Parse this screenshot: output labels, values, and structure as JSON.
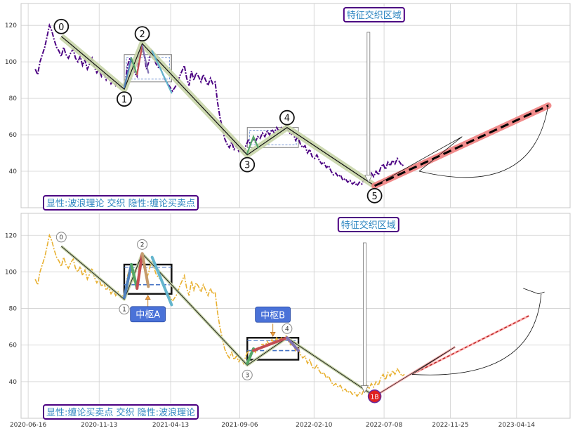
{
  "chart_data": [
    {
      "type": "line",
      "panel": "top",
      "title": "",
      "xlabel": "",
      "ylabel": "",
      "ylim": [
        20,
        132
      ],
      "yticks": [
        40,
        60,
        80,
        100,
        120
      ],
      "grid": true,
      "annotation_box": "特征交织区域",
      "corner_label": "显性:波浪理论 交织 隐性:缠论买卖点",
      "colors": {
        "price": "#4b0082",
        "wave": "#c8d5a8",
        "forecast": "#f08080",
        "label_border": "#4b0082",
        "label_text": "#2e86c1"
      },
      "wave_points": [
        {
          "label": "0",
          "x": "2020-08-25",
          "y": 114
        },
        {
          "label": "1",
          "x": "2021-01-05",
          "y": 85
        },
        {
          "label": "2",
          "x": "2021-02-12",
          "y": 110
        },
        {
          "label": "3",
          "x": "2021-09-22",
          "y": 49
        },
        {
          "label": "4",
          "x": "2021-12-15",
          "y": 64
        },
        {
          "label": "5",
          "x": "2022-06-18",
          "y": 32
        }
      ],
      "forecast_line": [
        {
          "x": "2022-06-18",
          "y": 32
        },
        {
          "x": "2023-06-20",
          "y": 76
        }
      ],
      "zones": [
        {
          "x0": "2021-01-05",
          "x1": "2021-04-15",
          "y0": 89,
          "y1": 104
        },
        {
          "x0": "2021-09-22",
          "x1": "2022-01-08",
          "y0": 53,
          "y1": 64
        }
      ],
      "price": [
        [
          "2020-07-01",
          96
        ],
        [
          "2020-07-06",
          93
        ],
        [
          "2020-07-11",
          100
        ],
        [
          "2020-07-16",
          104
        ],
        [
          "2020-07-21",
          108
        ],
        [
          "2020-07-26",
          114
        ],
        [
          "2020-07-31",
          120
        ],
        [
          "2020-08-05",
          117
        ],
        [
          "2020-08-10",
          112
        ],
        [
          "2020-08-15",
          108
        ],
        [
          "2020-08-20",
          106
        ],
        [
          "2020-08-25",
          103
        ],
        [
          "2020-08-30",
          108
        ],
        [
          "2020-09-04",
          104
        ],
        [
          "2020-09-09",
          102
        ],
        [
          "2020-09-14",
          105
        ],
        [
          "2020-09-19",
          107
        ],
        [
          "2020-09-24",
          102
        ],
        [
          "2020-09-29",
          100
        ],
        [
          "2020-10-04",
          103
        ],
        [
          "2020-10-09",
          98
        ],
        [
          "2020-10-14",
          101
        ],
        [
          "2020-10-19",
          96
        ],
        [
          "2020-10-24",
          99
        ],
        [
          "2020-10-29",
          102
        ],
        [
          "2020-11-03",
          97
        ],
        [
          "2020-11-08",
          94
        ],
        [
          "2020-11-13",
          96
        ],
        [
          "2020-11-18",
          92
        ],
        [
          "2020-11-23",
          94
        ],
        [
          "2020-11-28",
          90
        ],
        [
          "2020-12-03",
          92
        ],
        [
          "2020-12-08",
          88
        ],
        [
          "2020-12-13",
          90
        ],
        [
          "2020-12-18",
          87
        ],
        [
          "2020-12-23",
          89
        ],
        [
          "2020-12-28",
          86
        ],
        [
          "2021-01-02",
          87
        ],
        [
          "2021-01-07",
          89
        ],
        [
          "2021-01-12",
          98
        ],
        [
          "2021-01-17",
          102
        ],
        [
          "2021-01-22",
          99
        ],
        [
          "2021-01-27",
          94
        ],
        [
          "2021-02-01",
          92
        ],
        [
          "2021-02-06",
          104
        ],
        [
          "2021-02-11",
          108
        ],
        [
          "2021-02-16",
          104
        ],
        [
          "2021-02-21",
          96
        ],
        [
          "2021-02-26",
          100
        ],
        [
          "2021-03-03",
          106
        ],
        [
          "2021-03-08",
          103
        ],
        [
          "2021-03-13",
          99
        ],
        [
          "2021-03-18",
          97
        ],
        [
          "2021-03-23",
          96
        ],
        [
          "2021-03-28",
          93
        ],
        [
          "2021-04-02",
          90
        ],
        [
          "2021-04-07",
          88
        ],
        [
          "2021-04-12",
          86
        ],
        [
          "2021-04-17",
          84
        ],
        [
          "2021-04-22",
          86
        ],
        [
          "2021-04-27",
          88
        ],
        [
          "2021-05-02",
          92
        ],
        [
          "2021-05-07",
          95
        ],
        [
          "2021-05-12",
          98
        ],
        [
          "2021-05-17",
          91
        ],
        [
          "2021-05-22",
          87
        ],
        [
          "2021-05-27",
          95
        ],
        [
          "2021-06-01",
          90
        ],
        [
          "2021-06-06",
          94
        ],
        [
          "2021-06-11",
          92
        ],
        [
          "2021-06-16",
          89
        ],
        [
          "2021-06-21",
          93
        ],
        [
          "2021-06-26",
          90
        ],
        [
          "2021-07-01",
          87
        ],
        [
          "2021-07-06",
          91
        ],
        [
          "2021-07-11",
          88
        ],
        [
          "2021-07-16",
          89
        ],
        [
          "2021-07-21",
          78
        ],
        [
          "2021-07-26",
          70
        ],
        [
          "2021-07-31",
          64
        ],
        [
          "2021-08-05",
          58
        ],
        [
          "2021-08-10",
          55
        ],
        [
          "2021-08-15",
          53
        ],
        [
          "2021-08-20",
          56
        ],
        [
          "2021-08-25",
          52
        ],
        [
          "2021-08-30",
          54
        ],
        [
          "2021-09-04",
          51
        ],
        [
          "2021-09-09",
          53
        ],
        [
          "2021-09-14",
          50
        ],
        [
          "2021-09-19",
          54
        ],
        [
          "2021-09-24",
          57
        ],
        [
          "2021-09-29",
          55
        ],
        [
          "2021-10-04",
          58
        ],
        [
          "2021-10-09",
          56
        ],
        [
          "2021-10-14",
          59
        ],
        [
          "2021-10-19",
          58
        ],
        [
          "2021-10-24",
          61
        ],
        [
          "2021-10-29",
          59
        ],
        [
          "2021-11-03",
          62
        ],
        [
          "2021-11-08",
          60
        ],
        [
          "2021-11-13",
          63
        ],
        [
          "2021-11-18",
          61
        ],
        [
          "2021-11-23",
          64
        ],
        [
          "2021-11-28",
          62
        ],
        [
          "2021-12-03",
          64
        ],
        [
          "2021-12-08",
          63
        ],
        [
          "2021-12-13",
          65
        ],
        [
          "2021-12-18",
          62
        ],
        [
          "2021-12-23",
          60
        ],
        [
          "2021-12-28",
          61
        ],
        [
          "2022-01-02",
          57
        ],
        [
          "2022-01-07",
          59
        ],
        [
          "2022-01-12",
          55
        ],
        [
          "2022-01-17",
          53
        ],
        [
          "2022-01-22",
          54
        ],
        [
          "2022-01-27",
          50
        ],
        [
          "2022-02-01",
          52
        ],
        [
          "2022-02-06",
          48
        ],
        [
          "2022-02-11",
          47
        ],
        [
          "2022-02-16",
          49
        ],
        [
          "2022-02-21",
          46
        ],
        [
          "2022-02-26",
          44
        ],
        [
          "2022-03-03",
          45
        ],
        [
          "2022-03-08",
          42
        ],
        [
          "2022-03-13",
          43
        ],
        [
          "2022-03-18",
          40
        ],
        [
          "2022-03-23",
          38
        ],
        [
          "2022-03-28",
          39
        ],
        [
          "2022-04-02",
          37
        ],
        [
          "2022-04-07",
          38
        ],
        [
          "2022-04-12",
          35
        ],
        [
          "2022-04-17",
          36
        ],
        [
          "2022-04-22",
          34
        ],
        [
          "2022-04-27",
          35
        ],
        [
          "2022-05-02",
          33
        ],
        [
          "2022-05-07",
          34
        ],
        [
          "2022-05-12",
          32
        ],
        [
          "2022-05-17",
          34
        ],
        [
          "2022-05-22",
          33
        ],
        [
          "2022-05-27",
          36
        ],
        [
          "2022-06-01",
          38
        ],
        [
          "2022-06-06",
          36
        ],
        [
          "2022-06-11",
          39
        ],
        [
          "2022-06-16",
          37
        ],
        [
          "2022-06-21",
          40
        ],
        [
          "2022-06-26",
          38
        ],
        [
          "2022-07-01",
          42
        ],
        [
          "2022-07-06",
          44
        ],
        [
          "2022-07-11",
          41
        ],
        [
          "2022-07-16",
          45
        ],
        [
          "2022-07-21",
          43
        ],
        [
          "2022-07-26",
          46
        ],
        [
          "2022-07-31",
          44
        ],
        [
          "2022-08-05",
          47
        ],
        [
          "2022-08-10",
          45
        ],
        [
          "2022-08-15",
          43
        ],
        [
          "2022-08-20",
          44
        ]
      ]
    },
    {
      "type": "line",
      "panel": "bottom",
      "title": "",
      "xlabel": "",
      "ylabel": "",
      "ylim": [
        20,
        132
      ],
      "yticks": [
        40,
        60,
        80,
        100,
        120
      ],
      "xticks": [
        "2020-06-16",
        "2020-11-13",
        "2021-04-13",
        "2021-09-06",
        "2022-02-10",
        "2022-07-08",
        "2022-11-25",
        "2023-04-14"
      ],
      "grid": true,
      "annotation_box": "特征交织区域",
      "corner_label": "显性:缠论买卖点 交织 隐性:波浪理论",
      "pivot_labels": [
        "中枢A",
        "中枢B"
      ],
      "colors": {
        "price": "#e8b030",
        "pivot_box": "#111111",
        "pivot_mid": "#4472c4",
        "forecast": "#b22222",
        "end_point": "#e02020",
        "label_bg": "#4a72d8"
      },
      "wave_points": [
        {
          "label": "0",
          "x": "2020-08-25",
          "y": 114
        },
        {
          "label": "1",
          "x": "2021-01-05",
          "y": 85
        },
        {
          "label": "2",
          "x": "2021-02-12",
          "y": 110
        },
        {
          "label": "3",
          "x": "2021-09-22",
          "y": 49
        },
        {
          "label": "4",
          "x": "2021-12-15",
          "y": 64
        },
        {
          "label": "1B",
          "x": "2022-06-18",
          "y": 32
        }
      ],
      "pivots": [
        {
          "name": "中枢A",
          "x0": "2021-01-05",
          "x1": "2021-04-15",
          "y0": 88,
          "y1": 104,
          "mid": 93
        },
        {
          "name": "中枢B",
          "x0": "2021-09-22",
          "x1": "2022-01-08",
          "y0": 52,
          "y1": 64,
          "mid": 57
        }
      ],
      "forecast_line": [
        {
          "x": "2022-09-05",
          "y": 44
        },
        {
          "x": "2023-05-10",
          "y": 76
        }
      ]
    }
  ]
}
